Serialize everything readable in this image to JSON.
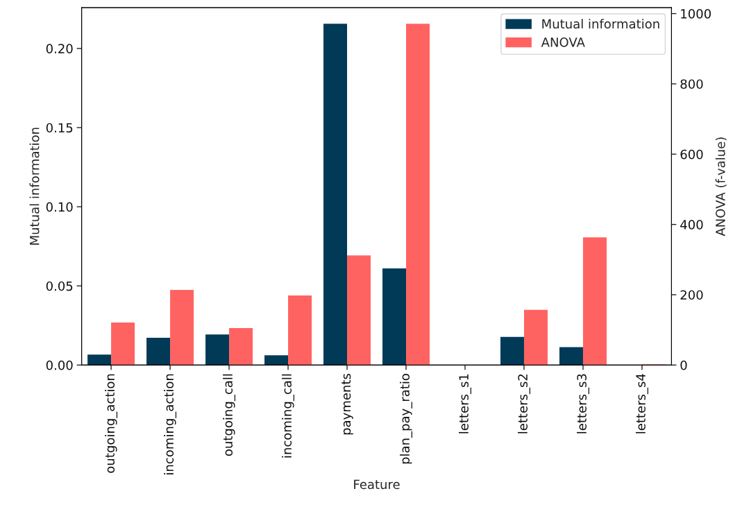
{
  "chart_data": {
    "type": "bar",
    "xlabel": "Feature",
    "ylabel": "Mutual information",
    "y2label": "ANOVA (f-value)",
    "categories": [
      "outgoing_action",
      "incoming_action",
      "outgoing_call",
      "incoming_call",
      "payments",
      "plan_pay_ratio",
      "letters_s1",
      "letters_s2",
      "letters_s3",
      "letters_s4"
    ],
    "series": [
      {
        "name": "Mutual information",
        "color": "#003a57",
        "values": [
          0.0066,
          0.0172,
          0.0193,
          0.0062,
          0.2156,
          0.061,
          null,
          0.0178,
          0.0113,
          null
        ]
      },
      {
        "name": "ANOVA",
        "color": "#ff6361",
        "axis": "y2",
        "values": [
          121,
          214,
          105,
          198,
          312,
          971,
          null,
          157,
          363,
          2
        ]
      }
    ],
    "ylim": [
      0,
      0.2258
    ],
    "yticks": [
      {
        "value": 0,
        "label": "0.00"
      },
      {
        "value": 0.05,
        "label": "0.05"
      },
      {
        "value": 0.1,
        "label": "0.10"
      },
      {
        "value": 0.15,
        "label": "0.15"
      },
      {
        "value": 0.2,
        "label": "0.20"
      }
    ],
    "y2lim": [
      0,
      1017
    ],
    "y2ticks": [
      0,
      200,
      400,
      600,
      800,
      1000
    ],
    "legend": "top right",
    "grid": false
  }
}
